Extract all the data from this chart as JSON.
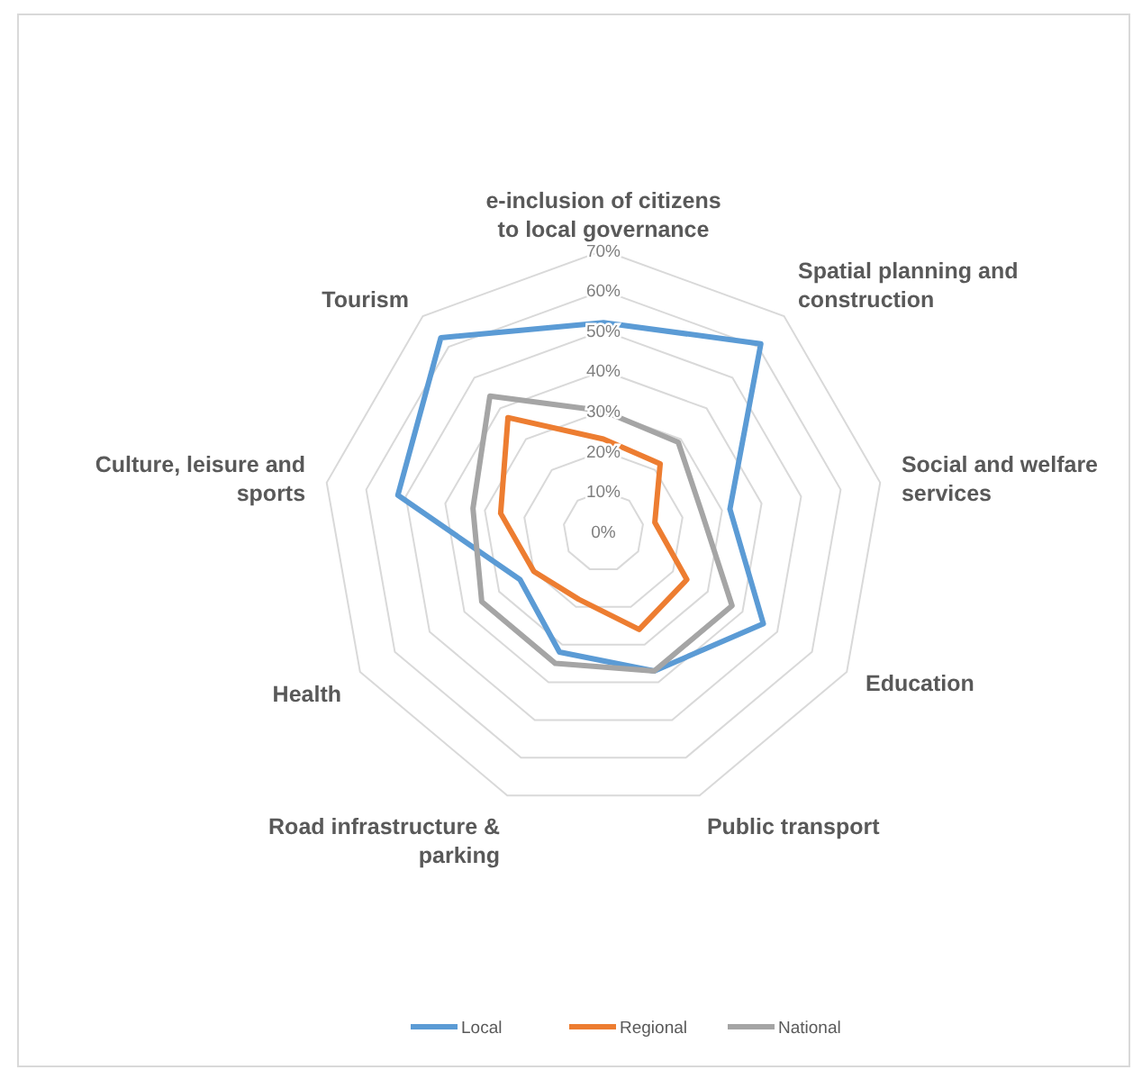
{
  "chart_data": {
    "type": "radar",
    "categories": [
      "e-inclusion of citizens to local governance",
      "Spatial planning and construction",
      "Social and welfare services",
      "Education",
      "Public transport",
      "Road infrastructure & parking",
      "Health",
      "Culture, leisure and sports",
      "Tourism"
    ],
    "series": [
      {
        "name": "Local",
        "color": "#5b9bd5",
        "values": [
          52,
          61,
          32,
          46,
          37,
          32,
          24,
          52,
          63
        ]
      },
      {
        "name": "Regional",
        "color": "#ed7d31",
        "values": [
          23,
          22,
          13,
          24,
          26,
          18,
          20,
          26,
          37
        ]
      },
      {
        "name": "National",
        "color": "#a5a5a5",
        "values": [
          30,
          29,
          25,
          37,
          37,
          35,
          35,
          33,
          44
        ]
      }
    ],
    "ylim": [
      0,
      70
    ],
    "yticks": [
      {
        "value": 0,
        "label": "0%"
      },
      {
        "value": 10,
        "label": "10%"
      },
      {
        "value": 20,
        "label": "20%"
      },
      {
        "value": 30,
        "label": "30%"
      },
      {
        "value": 40,
        "label": "40%"
      },
      {
        "value": 50,
        "label": "50%"
      },
      {
        "value": 60,
        "label": "60%"
      },
      {
        "value": 70,
        "label": "70%"
      }
    ],
    "grid": true,
    "legend": "bottom"
  }
}
